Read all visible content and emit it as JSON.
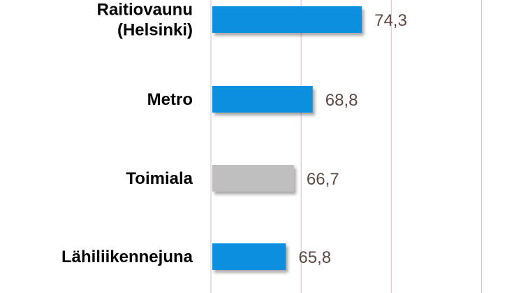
{
  "chart_data": {
    "type": "bar",
    "orientation": "horizontal",
    "categories": [
      [
        "Raitiovaunu",
        "(Helsinki)"
      ],
      [
        "Metro"
      ],
      [
        "Toimiala"
      ],
      [
        "Lähiliikennejuna"
      ]
    ],
    "values": [
      74.3,
      68.8,
      66.7,
      65.8
    ],
    "value_labels": [
      "74,3",
      "68,8",
      "66,7",
      "65,8"
    ],
    "bar_colors": [
      "#0f8fe0",
      "#0f8fe0",
      "#bfbfbf",
      "#0f8fe0"
    ],
    "xlim": [
      57.4,
      87.9
    ],
    "grid_x": [
      57.4,
      67.5,
      77.6,
      87.7
    ],
    "title": "",
    "xlabel": "",
    "ylabel": "",
    "grid": true,
    "legend": "none"
  }
}
